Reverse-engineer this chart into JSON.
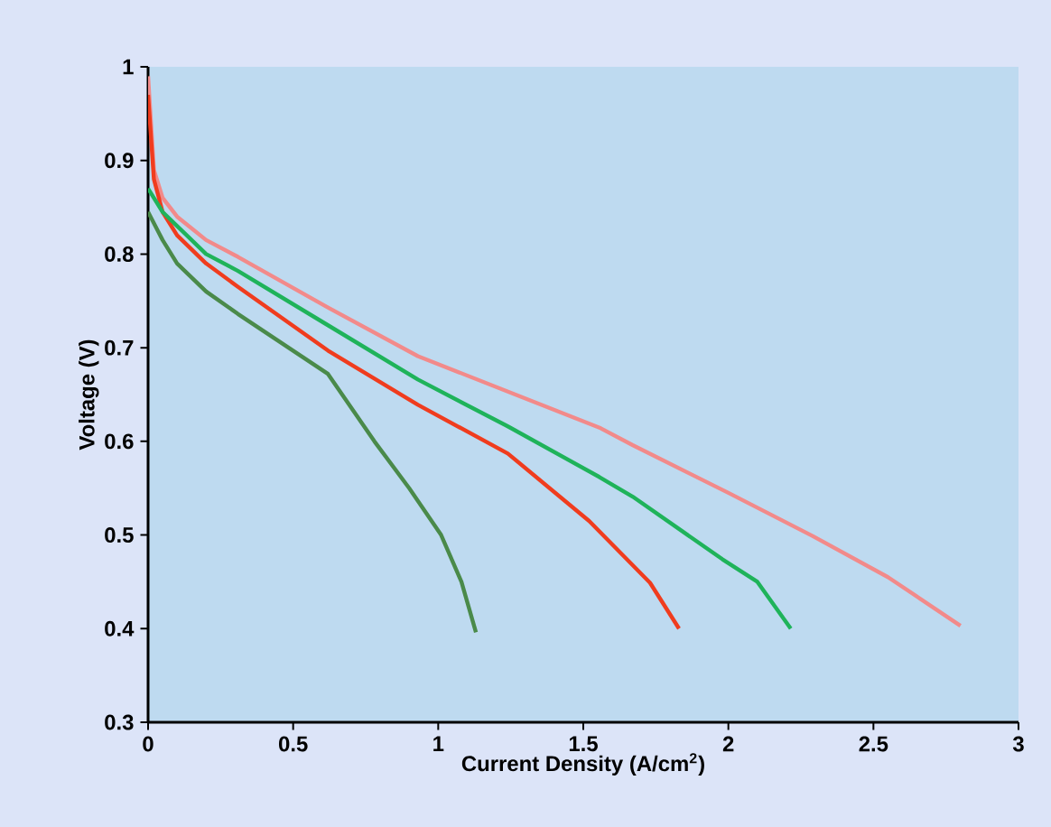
{
  "chart_data": {
    "type": "line",
    "xlabel": "Current Density (A/cm$^{2}$)",
    "ylabel": "Voltage (V)",
    "xlim": [
      0,
      3
    ],
    "ylim": [
      0.3,
      1
    ],
    "xticks": [
      0,
      0.5,
      1,
      1.5,
      2,
      2.5,
      3
    ],
    "yticks": [
      0.3,
      0.4,
      0.5,
      0.6,
      0.7,
      0.8,
      0.9,
      1
    ],
    "series": [
      {
        "color": "#f28a8a",
        "x": [
          0,
          0.02,
          0.05,
          0.1,
          0.2,
          0.31,
          0.62,
          0.93,
          1.25,
          1.56,
          1.67,
          2.0,
          2.29,
          2.55,
          2.8
        ],
        "values": [
          0.99,
          0.89,
          0.86,
          0.84,
          0.815,
          0.797,
          0.743,
          0.691,
          0.652,
          0.614,
          0.596,
          0.545,
          0.499,
          0.455,
          0.403
        ]
      },
      {
        "color": "#f03c1e",
        "x": [
          0,
          0.02,
          0.05,
          0.1,
          0.2,
          0.31,
          0.62,
          0.93,
          1.24,
          1.52,
          1.73,
          1.83
        ],
        "values": [
          0.97,
          0.88,
          0.845,
          0.82,
          0.79,
          0.765,
          0.697,
          0.639,
          0.587,
          0.515,
          0.449,
          0.4
        ]
      },
      {
        "color": "#1fb35a",
        "x": [
          0,
          0.05,
          0.1,
          0.2,
          0.31,
          0.62,
          0.93,
          1.24,
          1.555,
          1.67,
          1.98,
          2.1,
          2.215
        ],
        "values": [
          0.87,
          0.845,
          0.83,
          0.8,
          0.782,
          0.724,
          0.666,
          0.616,
          0.562,
          0.541,
          0.474,
          0.45,
          0.4
        ]
      },
      {
        "color": "#4a8a4a",
        "x": [
          0,
          0.05,
          0.1,
          0.2,
          0.31,
          0.62,
          0.78,
          0.9,
          1.01,
          1.08,
          1.13
        ],
        "values": [
          0.845,
          0.815,
          0.79,
          0.76,
          0.736,
          0.672,
          0.6,
          0.55,
          0.5,
          0.45,
          0.396
        ]
      }
    ]
  }
}
